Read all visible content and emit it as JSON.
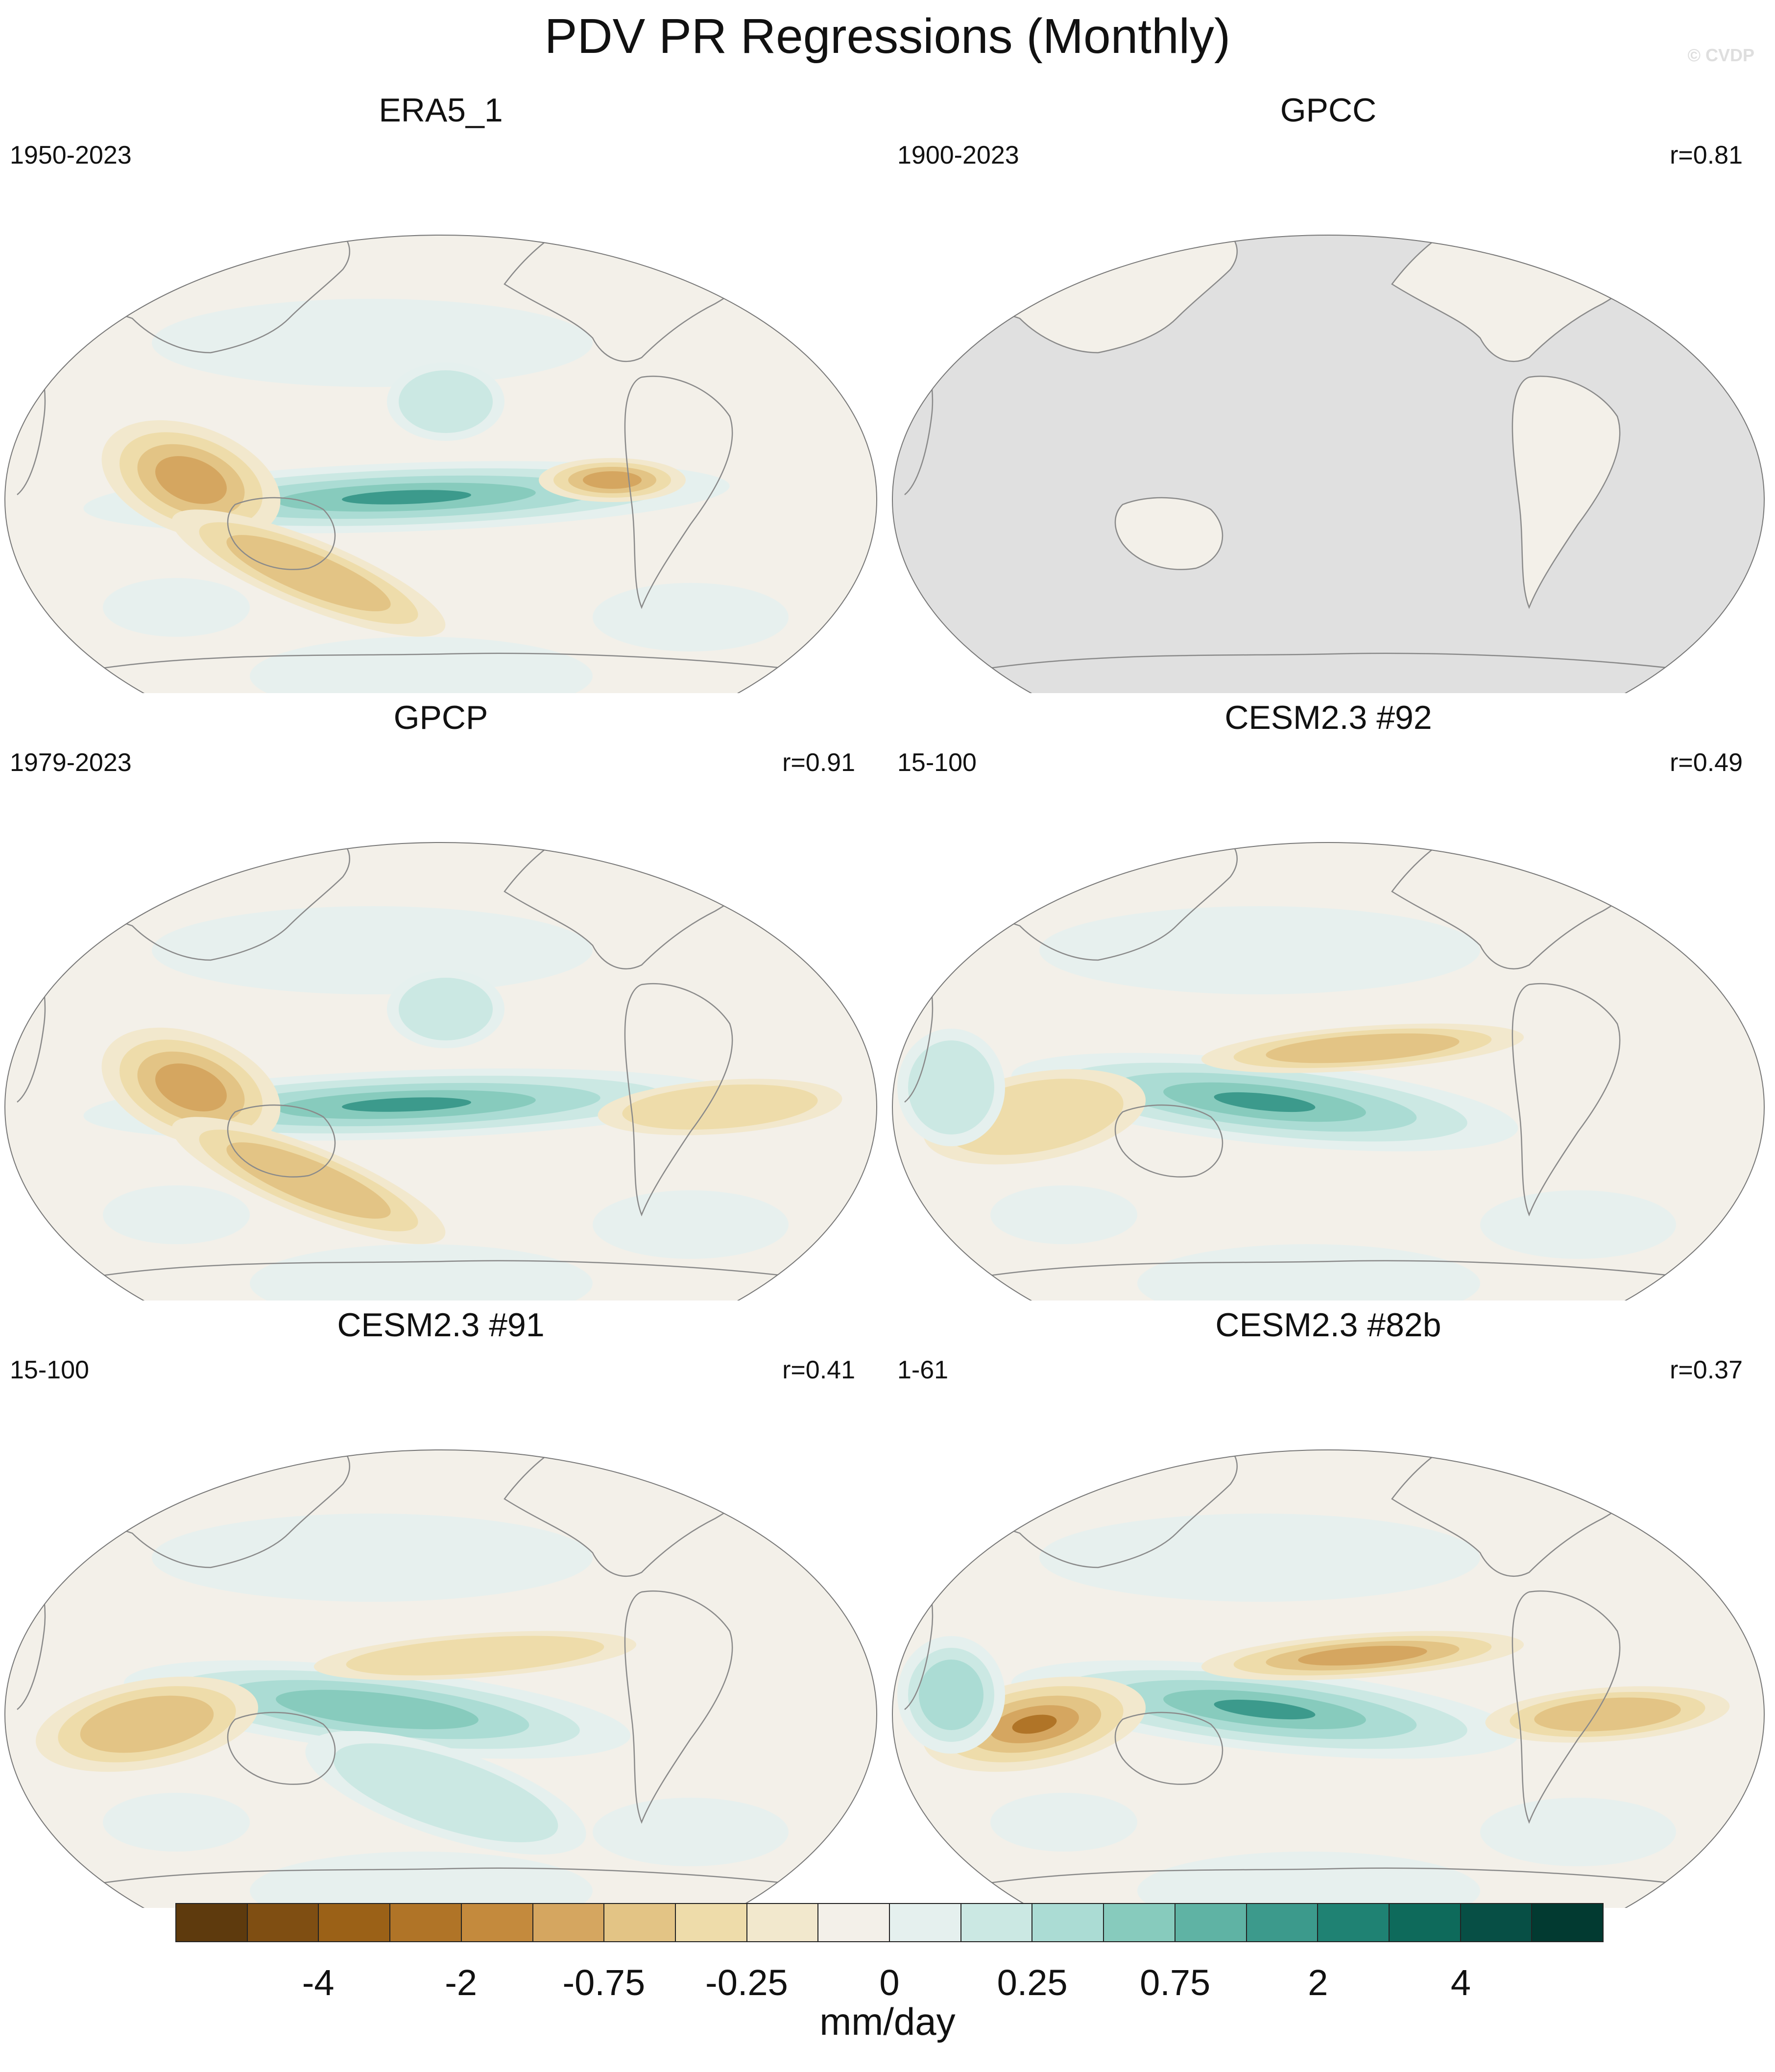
{
  "title": "PDV PR Regressions (Monthly)",
  "watermark": "© CVDP",
  "panels": [
    {
      "title": "ERA5_1",
      "period": "1950-2023",
      "corr": "",
      "mask_land_only": false,
      "features": [
        [
          "pos",
          "eq-central",
          4
        ],
        [
          "pos",
          "nw-pac",
          1
        ],
        [
          "neg",
          "maritime",
          3
        ],
        [
          "neg",
          "spcz",
          2
        ],
        [
          "neg",
          "colombia",
          3
        ]
      ]
    },
    {
      "title": "GPCC",
      "period": "1900-2023",
      "corr": "r=0.81",
      "mask_land_only": true,
      "features": []
    },
    {
      "title": "GPCP",
      "period": "1979-2023",
      "corr": "r=0.91",
      "mask_land_only": false,
      "features": [
        [
          "pos",
          "eq-central",
          4
        ],
        [
          "pos",
          "nw-pac",
          1
        ],
        [
          "neg",
          "maritime",
          3
        ],
        [
          "neg",
          "spcz",
          2
        ],
        [
          "neg",
          "atl",
          1
        ]
      ]
    },
    {
      "title": "CESM2.3 #92",
      "period": "15-100",
      "corr": "r=0.49",
      "mask_land_only": false,
      "features": [
        [
          "pos",
          "eq-west",
          4
        ],
        [
          "neg",
          "north-eq",
          2
        ],
        [
          "neg",
          "indian",
          1
        ],
        [
          "pos",
          "indian-west",
          1
        ]
      ]
    },
    {
      "title": "CESM2.3 #91",
      "period": "15-100",
      "corr": "r=0.41",
      "mask_land_only": false,
      "features": [
        [
          "pos",
          "eq-west",
          3
        ],
        [
          "neg",
          "north-eq",
          1
        ],
        [
          "neg",
          "indian",
          2
        ],
        [
          "pos",
          "spcz-pos",
          1
        ]
      ]
    },
    {
      "title": "CESM2.3 #82b",
      "period": "1-61",
      "corr": "r=0.37",
      "mask_land_only": false,
      "features": [
        [
          "pos",
          "eq-west",
          4
        ],
        [
          "neg",
          "north-eq",
          3
        ],
        [
          "neg",
          "indian",
          4
        ],
        [
          "neg",
          "atl",
          2
        ],
        [
          "pos",
          "indian-west",
          2
        ]
      ]
    }
  ],
  "colorbar": {
    "colors": [
      "#5e3a0d",
      "#7f4e12",
      "#9b6117",
      "#b07427",
      "#c48a3d",
      "#d5a660",
      "#e3c485",
      "#eedcaa",
      "#f2e8cd",
      "#f3f0e9",
      "#e5f0ee",
      "#cbe8e3",
      "#abdcd4",
      "#87cbbd",
      "#5fb3a4",
      "#3c9a8c",
      "#1f8273",
      "#0e6a5b",
      "#074f45",
      "#023a31"
    ],
    "ticks": [
      "-4",
      "-2",
      "-0.75",
      "-0.25",
      "0",
      "0.25",
      "0.75",
      "2",
      "4"
    ],
    "units": "mm/day"
  }
}
